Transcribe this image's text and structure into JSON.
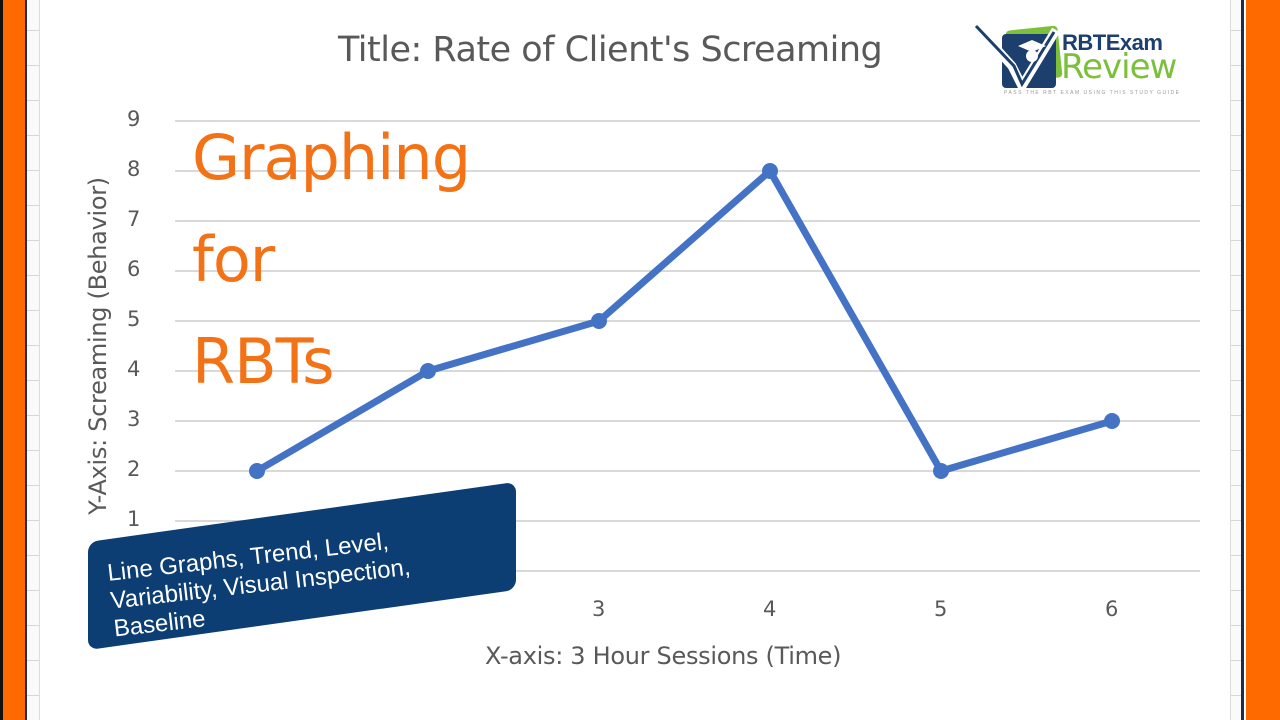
{
  "overlay": {
    "headline_lines": [
      "Graphing",
      "for",
      "RBTs"
    ],
    "banner_lines": [
      "Line Graphs, Trend, Level,",
      "Variability, Visual Inspection,",
      "Baseline"
    ]
  },
  "logo": {
    "name_top": "RBTExam",
    "name_bottom": "Review",
    "tagline": "PASS THE RBT EXAM USING THIS STUDY GUIDE"
  },
  "colors": {
    "frame_orange": "#ff6a00",
    "headline_orange": "#f47216",
    "banner_navy": "#0c3d73",
    "series_blue": "#4472c4",
    "gridline": "#d9d9d9",
    "axis_text": "#595959",
    "logo_navy": "#1d3f6e",
    "logo_green": "#7cbf3b"
  },
  "chart_data": {
    "type": "line",
    "title": "Title: Rate of Client's Screaming",
    "xlabel": "X-axis: 3 Hour Sessions (Time)",
    "ylabel": "Y-Axis: Screaming (Behavior)",
    "x": [
      1,
      2,
      3,
      4,
      5,
      6
    ],
    "x_tick_labels_visible": [
      "3",
      "4",
      "5",
      "6"
    ],
    "y_tick_labels": [
      "1",
      "2",
      "3",
      "4",
      "5",
      "6",
      "7",
      "8",
      "9"
    ],
    "ylim": [
      0,
      9
    ],
    "grid": true,
    "legend": "none",
    "series": [
      {
        "name": "Screaming",
        "values": [
          2,
          4,
          5,
          8,
          2,
          3
        ],
        "markers": true
      }
    ]
  }
}
